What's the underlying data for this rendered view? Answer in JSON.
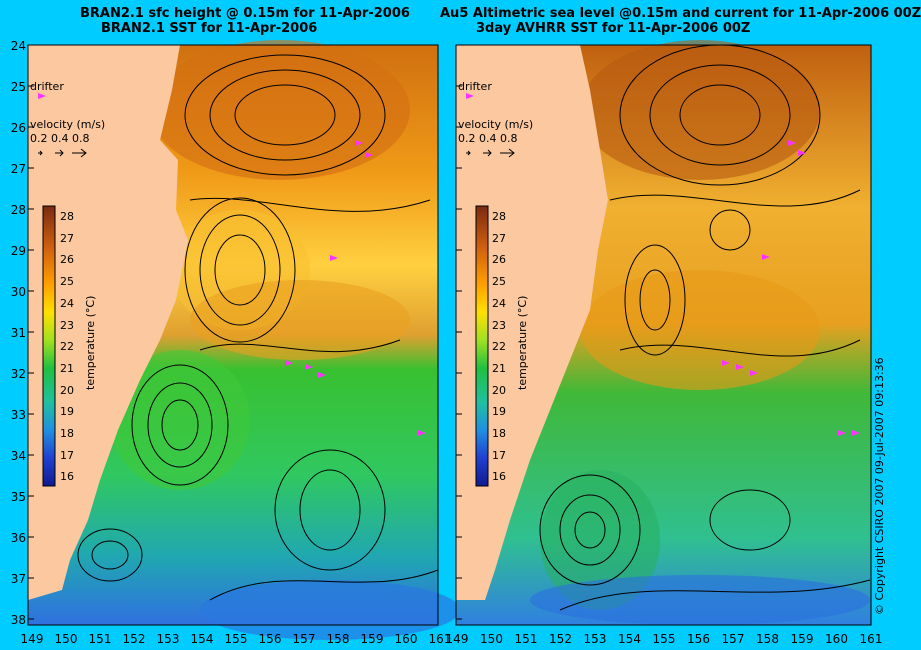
{
  "panels": [
    {
      "id": "left",
      "title_line1": "BRAN2.1 sfc height @ 0.15m for 11-Apr-2006",
      "title_line2": "BRAN2.1 SST for 11-Apr-2006",
      "drifter_label": "drifter",
      "velocity_label": "velocity (m/s)",
      "velocity_scale": "0.2 0.4 0.8",
      "colorbar_title": "temperature (°C)"
    },
    {
      "id": "right",
      "title_line1": "Au5 Altimetric sea level  @0.15m and current for 11-Apr-2006 00Z",
      "title_line2": "3day AVHRR SST for 11-Apr-2006 00Z",
      "drifter_label": "drifter",
      "velocity_label": "velocity (m/s)",
      "velocity_scale": "0.2 0.4 0.8",
      "colorbar_title": "temperature (°C)"
    }
  ],
  "latitudes": [
    "24",
    "25",
    "26",
    "27",
    "28",
    "29",
    "30",
    "31",
    "32",
    "33",
    "34",
    "35",
    "36",
    "37",
    "38"
  ],
  "longitudes_left": [
    "149",
    "150",
    "151",
    "152",
    "153",
    "154",
    "155",
    "156",
    "157",
    "158",
    "159",
    "160",
    "161"
  ],
  "longitudes_right": [
    "149",
    "150",
    "151",
    "152",
    "153",
    "154",
    "155",
    "156",
    "157",
    "158",
    "159",
    "160",
    "161"
  ],
  "colorbar_ticks": [
    "28",
    "27",
    "26",
    "25",
    "24",
    "23",
    "22",
    "21",
    "20",
    "19",
    "18",
    "17",
    "16"
  ],
  "copyright": "© Copyright CSIRO 2007   09-Jul-2007 09:13:36",
  "colors": {
    "background": "#00ccff",
    "land": "#fbc8a0",
    "drifter": "#ff33ff",
    "cb_28": "#7a2a10",
    "cb_16": "#101a90"
  }
}
